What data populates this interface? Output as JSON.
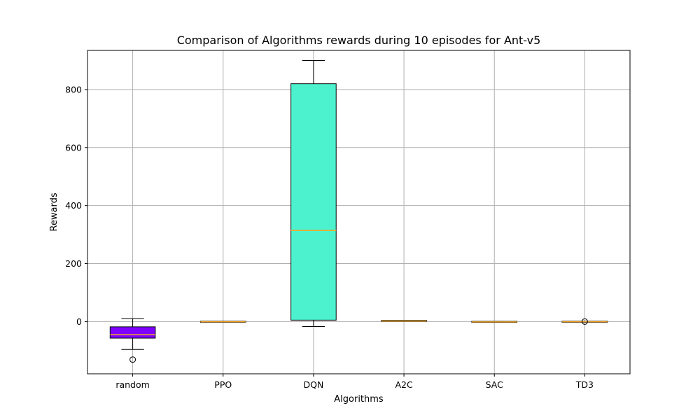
{
  "chart_data": {
    "type": "box",
    "title": "Comparison of Algorithms rewards during 10 episodes for Ant-v5",
    "xlabel": "Algorithms",
    "ylabel": "Rewards",
    "ylim": [
      -180,
      935
    ],
    "yticks": [
      0,
      200,
      400,
      600,
      800
    ],
    "grid": true,
    "categories": [
      "random",
      "PPO",
      "DQN",
      "A2C",
      "SAC",
      "TD3"
    ],
    "boxes": [
      {
        "name": "random",
        "whisker_low": -96,
        "q1": -57,
        "median": -45,
        "q3": -18,
        "whisker_high": 10,
        "outliers": [
          -131
        ],
        "color": "#7f00ff"
      },
      {
        "name": "PPO",
        "whisker_low": -1.5,
        "q1": -1,
        "median": -0.5,
        "q3": 0,
        "whisker_high": 0.5,
        "outliers": [],
        "color": "#2a5cff"
      },
      {
        "name": "DQN",
        "whisker_low": -17,
        "q1": 5,
        "median": 314,
        "q3": 820,
        "whisker_high": 900,
        "outliers": [],
        "color": "#4cf2ce"
      },
      {
        "name": "A2C",
        "whisker_low": 1,
        "q1": 1.5,
        "median": 2,
        "q3": 3,
        "whisker_high": 3.5,
        "outliers": [],
        "color": "#b2f296"
      },
      {
        "name": "SAC",
        "whisker_low": -2,
        "q1": -1.5,
        "median": -1,
        "q3": -0.5,
        "whisker_high": 0,
        "outliers": [],
        "color": "#ff8c4a"
      },
      {
        "name": "TD3",
        "whisker_low": -1.5,
        "q1": -1,
        "median": -0.5,
        "q3": 0,
        "whisker_high": 0.5,
        "outliers": [
          0
        ],
        "color": "#ff0000"
      }
    ],
    "median_color": "#f5a623",
    "grid_color": "#b0b0b0"
  }
}
